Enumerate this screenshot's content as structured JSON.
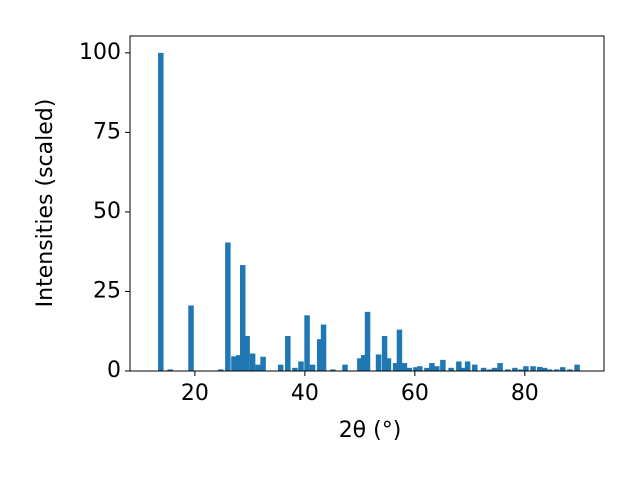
{
  "chart_data": {
    "type": "bar",
    "x": [
      13.8,
      15.5,
      19.3,
      24.7,
      26.0,
      27.1,
      28.0,
      28.7,
      29.5,
      30.5,
      31.5,
      32.4,
      35.6,
      36.9,
      38.2,
      39.3,
      40.4,
      41.4,
      42.7,
      43.4,
      45.1,
      47.3,
      50.0,
      50.7,
      51.4,
      53.4,
      54.5,
      55.2,
      56.5,
      57.2,
      58.1,
      59.0,
      60.2,
      60.9,
      62.2,
      63.1,
      64.0,
      65.1,
      66.6,
      68.0,
      68.9,
      69.6,
      70.9,
      72.5,
      73.6,
      74.5,
      75.5,
      76.9,
      78.2,
      79.3,
      80.2,
      81.5,
      82.7,
      83.6,
      84.5,
      85.8,
      86.9,
      88.2,
      89.5
    ],
    "values": [
      100,
      0.5,
      20.6,
      0.5,
      40.4,
      4.6,
      5,
      33.3,
      11,
      5.5,
      2,
      4.5,
      2,
      11,
      1,
      3,
      17.5,
      2,
      10,
      14.6,
      0.5,
      2,
      4,
      5,
      18.6,
      5.2,
      11,
      4,
      2.5,
      13,
      2.5,
      1,
      1.2,
      1.5,
      1,
      2.5,
      1.5,
      3.5,
      1,
      3,
      1,
      3,
      2,
      1,
      0.5,
      1,
      2.5,
      0.5,
      1,
      0.5,
      1.5,
      1.5,
      1.3,
      1,
      0.5,
      0.5,
      1.2,
      0.5,
      2
    ],
    "color": "#1f77b4",
    "xlabel": "2θ (°)",
    "ylabel": "Intensities (scaled)",
    "xlim": [
      8.2,
      94.4
    ],
    "xticks": [
      20,
      40,
      60,
      80
    ],
    "ylim": [
      0,
      105.3
    ],
    "yticks": [
      0,
      25,
      50,
      75,
      100
    ]
  }
}
